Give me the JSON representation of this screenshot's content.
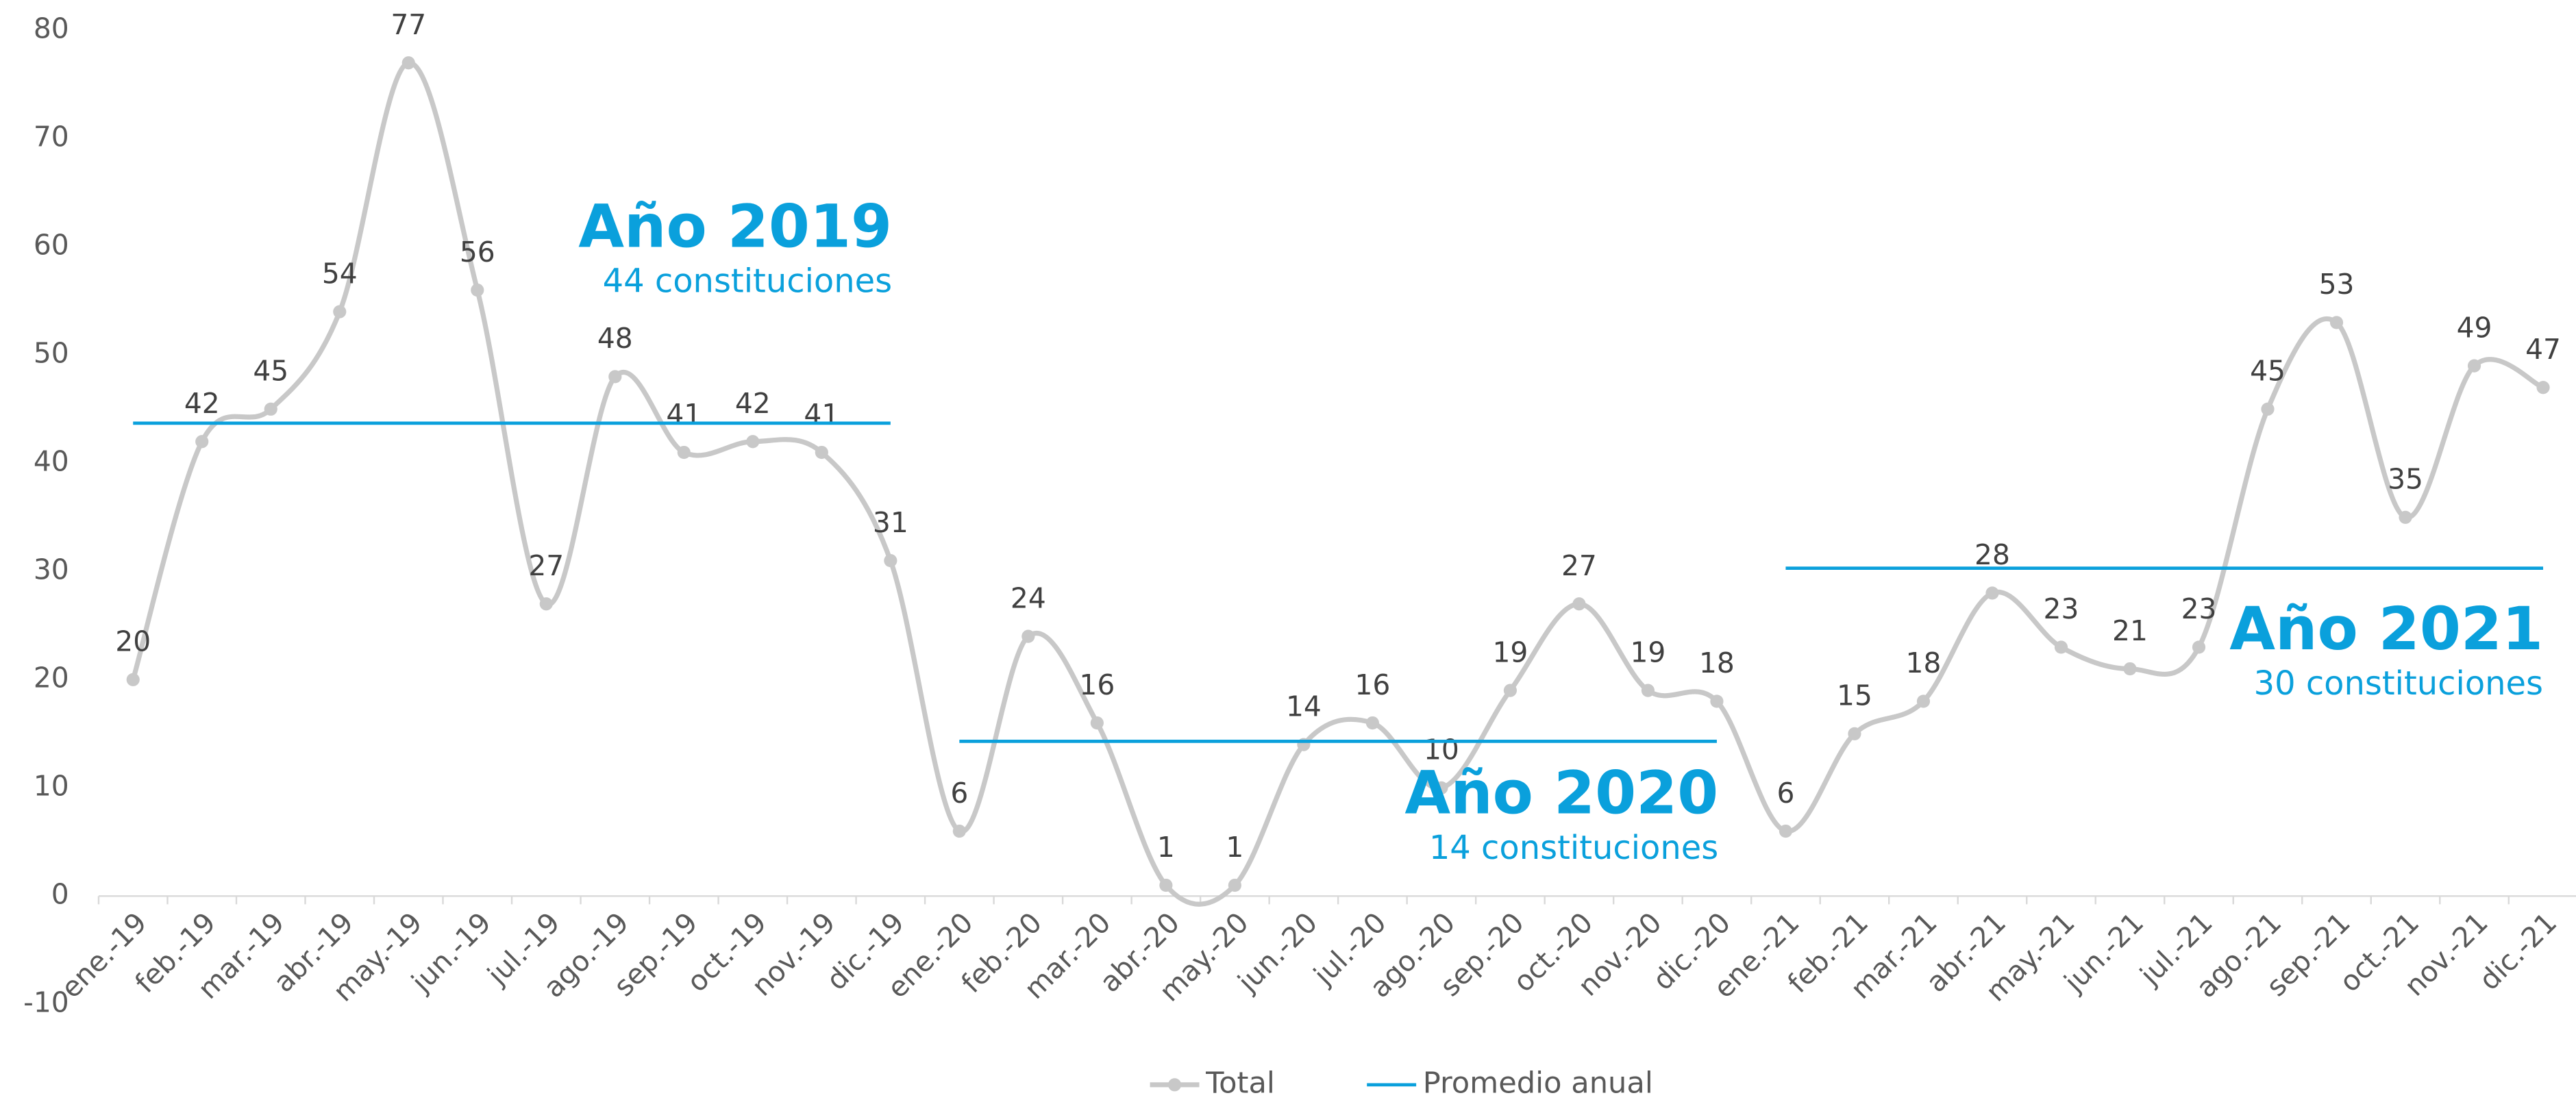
{
  "chart_data": {
    "type": "line",
    "categories": [
      "ene.-19",
      "feb.-19",
      "mar.-19",
      "abr.-19",
      "may.-19",
      "jun.-19",
      "jul.-19",
      "ago.-19",
      "sep.-19",
      "oct.-19",
      "nov.-19",
      "dic.-19",
      "ene.-20",
      "feb.-20",
      "mar.-20",
      "abr.-20",
      "may.-20",
      "jun.-20",
      "jul.-20",
      "ago.-20",
      "sep.-20",
      "oct.-20",
      "nov.-20",
      "dic.-20",
      "ene.-21",
      "feb.-21",
      "mar.-21",
      "abr.-21",
      "may.-21",
      "jun.-21",
      "jul.-21",
      "ago.-21",
      "sep.-21",
      "oct.-21",
      "nov.-21",
      "dic.-21"
    ],
    "series": [
      {
        "name": "Total",
        "color": "#c8c8c8",
        "smooth": true,
        "markers": true,
        "data_labels": true,
        "values": [
          20,
          42,
          45,
          54,
          77,
          56,
          27,
          48,
          41,
          42,
          41,
          31,
          6,
          24,
          16,
          1,
          1,
          14,
          16,
          10,
          19,
          27,
          19,
          18,
          6,
          15,
          18,
          28,
          23,
          21,
          23,
          45,
          53,
          35,
          49,
          47
        ]
      },
      {
        "name": "Promedio anual",
        "color": "#0aa0dc",
        "smooth": false,
        "markers": false,
        "data_labels": false,
        "values": [
          43.7,
          43.7,
          43.7,
          43.7,
          43.7,
          43.7,
          43.7,
          43.7,
          43.7,
          43.7,
          43.7,
          43.7,
          14.3,
          14.3,
          14.3,
          14.3,
          14.3,
          14.3,
          14.3,
          14.3,
          14.3,
          14.3,
          14.3,
          14.3,
          30.3,
          30.3,
          30.3,
          30.3,
          30.3,
          30.3,
          30.3,
          30.3,
          30.3,
          30.3,
          30.3,
          30.3
        ]
      }
    ],
    "annotations": [
      {
        "title": "Año 2019",
        "subtitle": "44 constituciones"
      },
      {
        "title": "Año 2020",
        "subtitle": "14 constituciones"
      },
      {
        "title": "Año 2021",
        "subtitle": "30 constituciones"
      }
    ],
    "ylim": [
      -10,
      80
    ],
    "yticks": [
      -10,
      0,
      10,
      20,
      30,
      40,
      50,
      60,
      70,
      80
    ],
    "grid": false,
    "legend": "bottom"
  }
}
